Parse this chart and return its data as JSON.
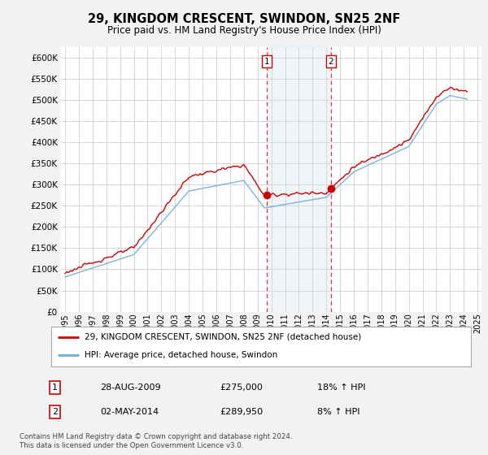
{
  "title": "29, KINGDOM CRESCENT, SWINDON, SN25 2NF",
  "subtitle": "Price paid vs. HM Land Registry's House Price Index (HPI)",
  "legend_line1": "29, KINGDOM CRESCENT, SWINDON, SN25 2NF (detached house)",
  "legend_line2": "HPI: Average price, detached house, Swindon",
  "footer1": "Contains HM Land Registry data © Crown copyright and database right 2024.",
  "footer2": "This data is licensed under the Open Government Licence v3.0.",
  "annotation1": {
    "label": "1",
    "date": "28-AUG-2009",
    "price": "£275,000",
    "hpi": "18% ↑ HPI"
  },
  "annotation2": {
    "label": "2",
    "date": "02-MAY-2014",
    "price": "£289,950",
    "hpi": "8% ↑ HPI"
  },
  "hpi_color": "#6baed6",
  "price_color": "#cc0000",
  "marker_color": "#cc0000",
  "vline_color": "#ee0000",
  "shade_color": "#c6dbef",
  "ylim": [
    0,
    625000
  ],
  "yticks": [
    0,
    50000,
    100000,
    150000,
    200000,
    250000,
    300000,
    350000,
    400000,
    450000,
    500000,
    550000,
    600000
  ],
  "ytick_labels": [
    "£0",
    "£50K",
    "£100K",
    "£150K",
    "£200K",
    "£250K",
    "£300K",
    "£350K",
    "£400K",
    "£450K",
    "£500K",
    "£550K",
    "£600K"
  ],
  "price_points": {
    "dates": [
      2009.659,
      2014.337
    ],
    "values": [
      275000,
      289950
    ]
  },
  "vline1_x": 2009.659,
  "vline2_x": 2014.337,
  "shade_x1": 2009.659,
  "shade_x2": 2014.337,
  "xtick_years": [
    1995,
    1996,
    1997,
    1998,
    1999,
    2000,
    2001,
    2002,
    2003,
    2004,
    2005,
    2006,
    2007,
    2008,
    2009,
    2010,
    2011,
    2012,
    2013,
    2014,
    2015,
    2016,
    2017,
    2018,
    2019,
    2020,
    2021,
    2022,
    2023,
    2024,
    2025
  ],
  "xlim": [
    1994.7,
    2025.3
  ],
  "bg_color": "#f2f2f2",
  "plot_bg_color": "#ffffff",
  "grid_color": "#d0d0d0"
}
